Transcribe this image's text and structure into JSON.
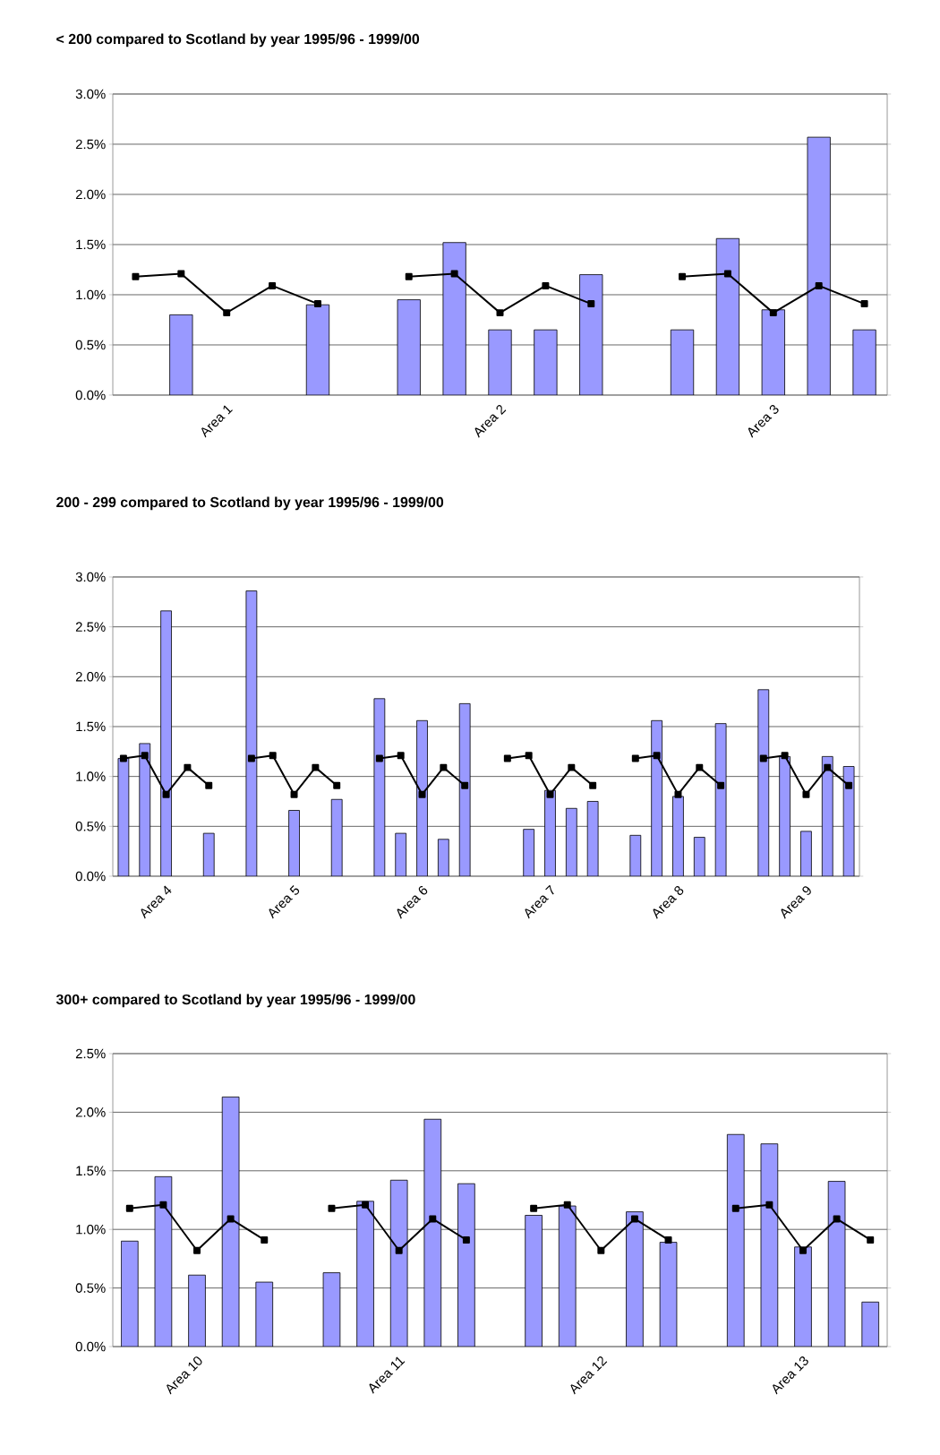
{
  "chart_data": [
    {
      "type": "bar",
      "title": "< 200 compared to Scotland by year 1995/96 - 1999/00",
      "categories": [
        null,
        null,
        "Area 1",
        null,
        null,
        null,
        null,
        null,
        "Area 2",
        null,
        null,
        null,
        null,
        null,
        "Area 3",
        null,
        null
      ],
      "series": [
        {
          "color": "#9999ff",
          "values": [
            null,
            0.8,
            null,
            null,
            0.9,
            null,
            0.95,
            1.52,
            0.65,
            0.65,
            1.2,
            null,
            0.65,
            1.56,
            0.85,
            2.57,
            0.65
          ]
        },
        {
          "type": "line",
          "color": "#000000",
          "values": [
            1.18,
            1.21,
            0.82,
            1.09,
            0.91,
            null,
            1.18,
            1.21,
            0.82,
            1.09,
            0.91,
            null,
            1.18,
            1.21,
            0.82,
            1.09,
            0.91
          ]
        }
      ],
      "ylim": [
        0,
        3
      ],
      "yticks": [
        {
          "value": 0,
          "label": "0.0%"
        },
        {
          "value": 0.5,
          "label": "0.5%"
        },
        {
          "value": 1,
          "label": "1.0%"
        },
        {
          "value": 1.5,
          "label": "1.5%"
        },
        {
          "value": 2,
          "label": "2.0%"
        },
        {
          "value": 2.5,
          "label": "2.5%"
        },
        {
          "value": 3,
          "label": "3.0%"
        }
      ],
      "grid": "y",
      "marker": "square"
    },
    {
      "type": "bar",
      "title": "200 - 299 compared to Scotland by year 1995/96 - 1999/00",
      "categories": [
        null,
        null,
        "Area 4",
        null,
        null,
        null,
        null,
        null,
        "Area 5",
        null,
        null,
        null,
        null,
        null,
        "Area 6",
        null,
        null,
        null,
        null,
        null,
        "Area 7",
        null,
        null,
        null,
        null,
        null,
        "Area 8",
        null,
        null,
        null,
        null,
        null,
        "Area 9",
        null,
        null
      ],
      "series": [
        {
          "color": "#9999ff",
          "values": [
            1.18,
            1.33,
            2.66,
            null,
            0.43,
            null,
            2.86,
            null,
            0.66,
            null,
            0.77,
            null,
            1.78,
            0.43,
            1.56,
            0.37,
            1.73,
            null,
            null,
            0.47,
            0.86,
            0.68,
            0.75,
            null,
            0.41,
            1.56,
            0.8,
            0.39,
            1.53,
            null,
            1.87,
            1.2,
            0.45,
            1.2,
            1.1
          ]
        },
        {
          "type": "line",
          "color": "#000000",
          "values": [
            1.18,
            1.21,
            0.82,
            1.09,
            0.91,
            null,
            1.18,
            1.21,
            0.82,
            1.09,
            0.91,
            null,
            1.18,
            1.21,
            0.82,
            1.09,
            0.91,
            null,
            1.18,
            1.21,
            0.82,
            1.09,
            0.91,
            null,
            1.18,
            1.21,
            0.82,
            1.09,
            0.91,
            null,
            1.18,
            1.21,
            0.82,
            1.09,
            0.91
          ]
        }
      ],
      "ylim": [
        0,
        3
      ],
      "yticks": [
        {
          "value": 0,
          "label": "0.0%"
        },
        {
          "value": 0.5,
          "label": "0.5%"
        },
        {
          "value": 1,
          "label": "1.0%"
        },
        {
          "value": 1.5,
          "label": "1.5%"
        },
        {
          "value": 2,
          "label": "2.0%"
        },
        {
          "value": 2.5,
          "label": "2.5%"
        },
        {
          "value": 3,
          "label": "3.0%"
        }
      ],
      "grid": "y",
      "marker": "square"
    },
    {
      "type": "bar",
      "title": "300+ compared to Scotland by year 1995/96 - 1999/00",
      "categories": [
        null,
        null,
        "Area 10",
        null,
        null,
        null,
        null,
        null,
        "Area 11",
        null,
        null,
        null,
        null,
        null,
        "Area 12",
        null,
        null,
        null,
        null,
        null,
        "Area 13",
        null,
        null
      ],
      "series": [
        {
          "color": "#9999ff",
          "values": [
            0.9,
            1.45,
            0.61,
            2.13,
            0.55,
            null,
            0.63,
            1.24,
            1.42,
            1.94,
            1.39,
            null,
            1.12,
            1.2,
            null,
            1.15,
            0.89,
            null,
            1.81,
            1.73,
            0.85,
            1.41,
            0.38
          ]
        },
        {
          "type": "line",
          "color": "#000000",
          "values": [
            1.18,
            1.21,
            0.82,
            1.09,
            0.91,
            null,
            1.18,
            1.21,
            0.82,
            1.09,
            0.91,
            null,
            1.18,
            1.21,
            0.82,
            1.09,
            0.91,
            null,
            1.18,
            1.21,
            0.82,
            1.09,
            0.91
          ]
        }
      ],
      "ylim": [
        0,
        2.5
      ],
      "yticks": [
        {
          "value": 0,
          "label": "0.0%"
        },
        {
          "value": 0.5,
          "label": "0.5%"
        },
        {
          "value": 1,
          "label": "1.0%"
        },
        {
          "value": 1.5,
          "label": "1.5%"
        },
        {
          "value": 2,
          "label": "2.0%"
        },
        {
          "value": 2.5,
          "label": "2.5%"
        }
      ],
      "grid": "y",
      "marker": "square"
    }
  ]
}
